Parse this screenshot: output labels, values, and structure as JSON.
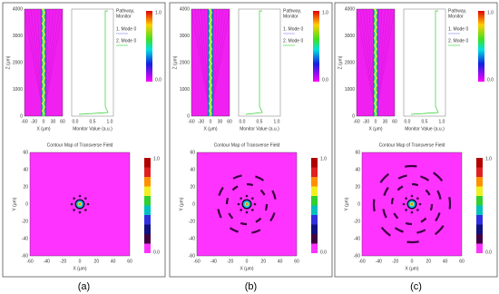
{
  "panels": [
    {
      "label": "(a)",
      "propagation": {
        "ylabel": "Z (μm)",
        "xlabel": "X (μm)",
        "yticks": [
          "0",
          "1000",
          "2000",
          "3000",
          "4000"
        ],
        "xticks": [
          "-60",
          "-30",
          "0",
          "30",
          "60"
        ]
      },
      "monitor": {
        "xlabel": "Monitor Value (a.u.)",
        "xticks": [
          "0.0",
          "0.5",
          "1.0"
        ],
        "legend_title": [
          "Pathway,",
          "Monitor"
        ],
        "legend": [
          "1. Mode 0",
          "2. Mode 0"
        ]
      },
      "colorbar": [
        "1.0",
        "0.0"
      ],
      "contour": {
        "title": "Contour Map of Transverse Field",
        "ylabel": "Y (μm)",
        "xlabel": "X (μm)",
        "yticks": [
          "60",
          "40",
          "20",
          "0",
          "-20",
          "-40",
          "-60"
        ],
        "xticks": [
          "-60",
          "-40",
          "-20",
          "0",
          "20",
          "40",
          "60"
        ],
        "colorbar": [
          "1.0",
          "0.0"
        ]
      }
    },
    {
      "label": "(b)",
      "propagation": {
        "ylabel": "Z (μm)",
        "xlabel": "X (μm)",
        "yticks": [
          "0",
          "1000",
          "2000",
          "3000",
          "4000"
        ],
        "xticks": [
          "-60",
          "-30",
          "0",
          "30",
          "60"
        ]
      },
      "monitor": {
        "xlabel": "Monitor Value (a.u.)",
        "xticks": [
          "0.0",
          "0.5",
          "1.0"
        ],
        "legend_title": [
          "Pathway,",
          "Monitor"
        ],
        "legend": [
          "1. Mode 0",
          "2. Mode 0"
        ]
      },
      "colorbar": [
        "1.0",
        "0.0"
      ],
      "contour": {
        "title": "Contour Map of Transverse Field",
        "ylabel": "Y (μm)",
        "xlabel": "X (μm)",
        "yticks": [
          "60",
          "40",
          "20",
          "0",
          "-20",
          "-40",
          "-60"
        ],
        "xticks": [
          "-60",
          "-40",
          "-20",
          "0",
          "20",
          "40",
          "60"
        ],
        "colorbar": [
          "1.0",
          "0.0"
        ]
      }
    },
    {
      "label": "(c)",
      "propagation": {
        "ylabel": "Z (μm)",
        "xlabel": "X (μm)",
        "yticks": [
          "0",
          "1000",
          "2000",
          "3000",
          "4000"
        ],
        "xticks": [
          "-60",
          "-30",
          "0",
          "30",
          "60"
        ]
      },
      "monitor": {
        "xlabel": "Monitor Value (a.u.)",
        "xticks": [
          "0.0",
          "0.5",
          "1.0"
        ],
        "legend_title": [
          "Pathway,",
          "Monitor"
        ],
        "legend": [
          "1. Mode 0",
          "2. Mode 0"
        ]
      },
      "colorbar": [
        "1.0",
        "0.0"
      ],
      "contour": {
        "title": "Contour Map of Transverse Field",
        "ylabel": "Y (μm)",
        "xlabel": "X (μm)",
        "yticks": [
          "60",
          "40",
          "20",
          "0",
          "-20",
          "-40",
          "-60"
        ],
        "xticks": [
          "-60",
          "-40",
          "-20",
          "0",
          "20",
          "40",
          "60"
        ],
        "colorbar": [
          "1.0",
          "0.0"
        ]
      }
    }
  ]
}
